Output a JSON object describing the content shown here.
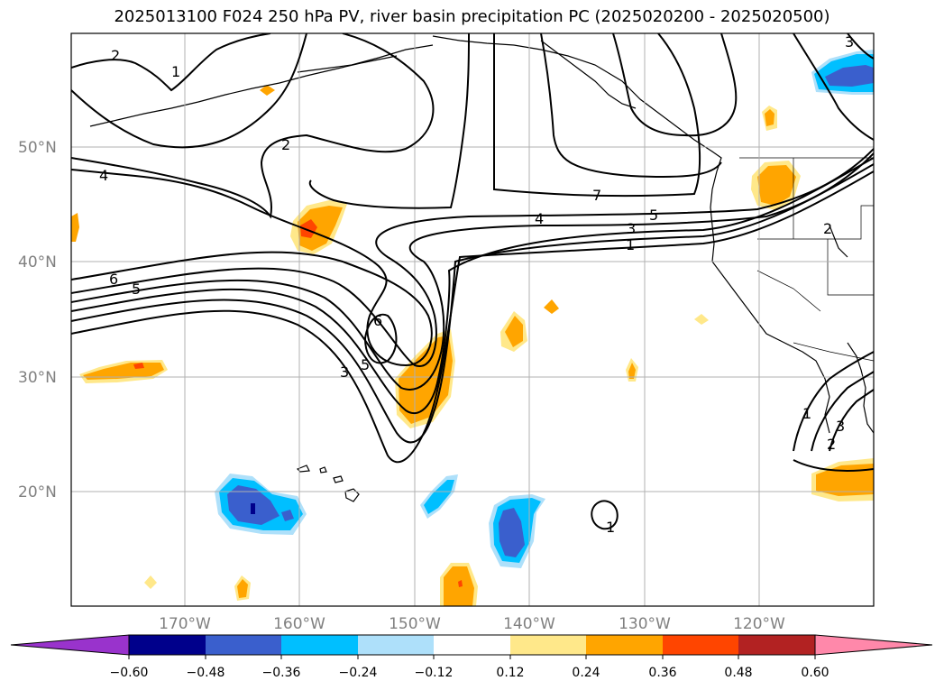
{
  "title": "2025013100 F024 250 hPa PV, river basin precipitation PC (2025020200 - 2025020500)",
  "lat_labels": [
    "50°N",
    "40°N",
    "30°N",
    "20°N"
  ],
  "lon_labels": [
    "170°W",
    "160°W",
    "150°W",
    "140°W",
    "130°W",
    "120°W"
  ],
  "contour_labels": [
    "2",
    "1",
    "4",
    "2",
    "6",
    "5",
    "6",
    "5",
    "3",
    "7",
    "4",
    "3",
    "1",
    "5",
    "2",
    "3",
    "1",
    "2",
    "3",
    "1"
  ],
  "colorbar": {
    "ticks": [
      "−0.60",
      "−0.48",
      "−0.36",
      "−0.24",
      "−0.12",
      "0.12",
      "0.24",
      "0.36",
      "0.48",
      "0.60"
    ],
    "colors": [
      "#9933cc",
      "#00008b",
      "#3a5fcd",
      "#00bfff",
      "#aee0fa",
      "#ffffff",
      "#ffe88a",
      "#ffa500",
      "#ff4500",
      "#b22222",
      "#ff88aa"
    ]
  }
}
